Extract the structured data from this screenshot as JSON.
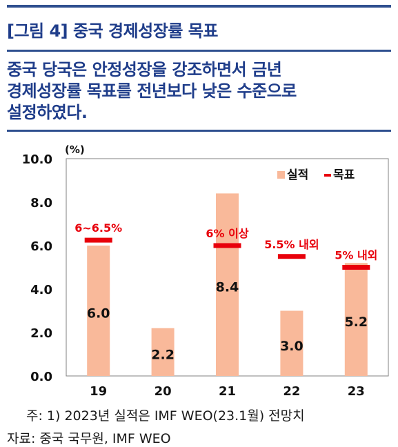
{
  "figure_title": "[그림 4] 중국 경제성장률 목표",
  "subtitle_lines": [
    "중국 당국은 안정성장을 강조하면서 금년",
    "경제성장률 목표를 전년보다 낮은 수준으로",
    "설정하였다."
  ],
  "note": "주: 1) 2023년 실적은 IMF WEO(23.1월) 전망치",
  "source": "자료: 중국 국무원, IMF WEO",
  "colors": {
    "actual": "#f9b99a",
    "target": "#e8000b",
    "title": "#1f3d8a",
    "target_label": "#e8000b"
  },
  "chart_data": {
    "type": "bar",
    "title": "",
    "xlabel": "",
    "ylabel": "",
    "yunit": "(%)",
    "ylim": [
      0,
      10
    ],
    "yticks": [
      "0.0",
      "2.0",
      "4.0",
      "6.0",
      "8.0",
      "10.0"
    ],
    "categories": [
      "19",
      "20",
      "21",
      "22",
      "23"
    ],
    "legend": {
      "placement": "top-right",
      "items": [
        "실적",
        "목표"
      ]
    },
    "series": [
      {
        "name": "실적",
        "type": "bar",
        "values": [
          6.0,
          2.2,
          8.4,
          3.0,
          5.2
        ],
        "labels": [
          "6.0",
          "2.2",
          "8.4",
          "3.0",
          "5.2"
        ]
      },
      {
        "name": "목표",
        "type": "marker",
        "values": [
          6.25,
          null,
          6.0,
          5.5,
          5.0
        ],
        "labels": [
          "6~6.5%",
          "",
          "6% 이상",
          "5.5% 내외",
          "5% 내외"
        ]
      }
    ]
  }
}
